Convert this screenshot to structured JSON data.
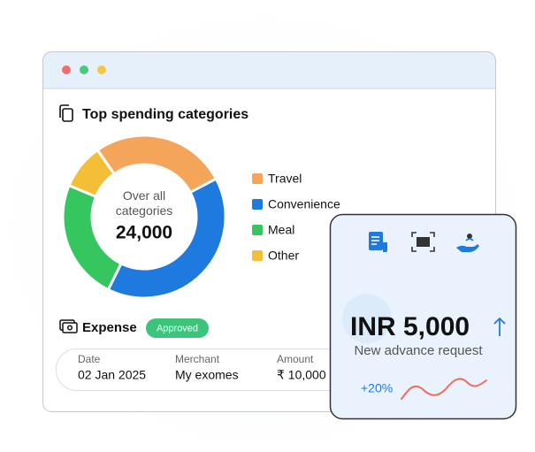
{
  "chart_data": {
    "type": "donut",
    "title": "Top spending categories",
    "center_label": "Over all categories",
    "center_value": "24,000",
    "categories": [
      "Travel",
      "Convenience",
      "Meal",
      "Other"
    ],
    "values": [
      27,
      40,
      24,
      9
    ],
    "colors": [
      "#f5a55a",
      "#1f7ae0",
      "#35c65f",
      "#f4be37"
    ]
  },
  "expense": {
    "title": "Expense",
    "status": "Approved",
    "fields": [
      {
        "label": "Date",
        "value": "02 Jan 2025"
      },
      {
        "label": "Merchant",
        "value": "My exomes"
      },
      {
        "label": "Amount",
        "value": "₹ 10,000"
      }
    ]
  },
  "advance_card": {
    "amount": "INR 5,000",
    "caption": "New advance request",
    "change": "+20%"
  }
}
